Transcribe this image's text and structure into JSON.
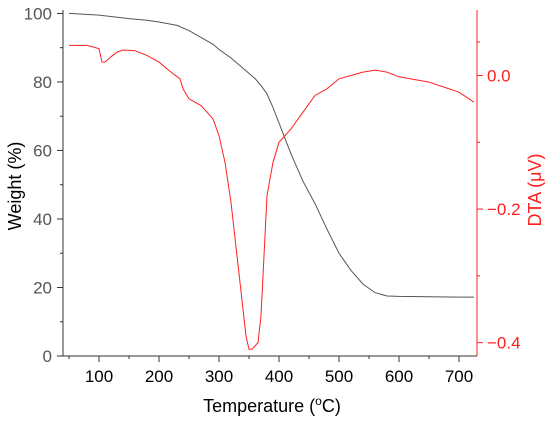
{
  "chart_data": {
    "type": "line",
    "xlabel": "Temperature (°C)",
    "xlabel_parts": {
      "prefix": "Temperature (",
      "superscript": "o",
      "suffix": "C)"
    },
    "ylabel_left": "Weight (%)",
    "ylabel_right": "DTA (μV)",
    "xlim": [
      40,
      730
    ],
    "ylim_left": [
      0,
      101
    ],
    "ylim_right": [
      -0.42,
      0.098
    ],
    "x_ticks": [
      100,
      200,
      300,
      400,
      500,
      600,
      700
    ],
    "x_tick_labels": [
      "100",
      "200",
      "300",
      "400",
      "500",
      "600",
      "700"
    ],
    "y_left_ticks": [
      0,
      20,
      40,
      60,
      80,
      100
    ],
    "y_left_tick_labels": [
      "0",
      "20",
      "40",
      "60",
      "80",
      "100"
    ],
    "y_right_ticks": [
      0.0,
      -0.2,
      -0.4
    ],
    "y_right_tick_labels": [
      "0.0",
      "−0.2",
      "−0.4"
    ],
    "grid": false,
    "colors": {
      "weight": "#555555",
      "dta": "#ff2020",
      "left_axis": "#333333",
      "right_axis": "#ff2020"
    },
    "series": [
      {
        "axis": "left",
        "x": [
          50,
          100,
          150,
          180,
          200,
          230,
          250,
          270,
          290,
          300,
          320,
          340,
          360,
          370,
          380,
          390,
          400,
          420,
          440,
          460,
          480,
          500,
          520,
          540,
          560,
          580,
          600,
          650,
          700,
          725
        ],
        "y": [
          100,
          99.5,
          98.5,
          98,
          97.5,
          96.5,
          95,
          93,
          91,
          89.5,
          87,
          84,
          81,
          79,
          76.5,
          72.5,
          68,
          59,
          51,
          44.5,
          37,
          30,
          25,
          21,
          18.5,
          17.5,
          17.4,
          17.3,
          17.2,
          17.2
        ]
      },
      {
        "axis": "right",
        "x": [
          50,
          80,
          100,
          105,
          110,
          120,
          130,
          140,
          160,
          180,
          200,
          220,
          235,
          240,
          250,
          260,
          270,
          280,
          290,
          300,
          310,
          320,
          330,
          340,
          345,
          350,
          355,
          360,
          365,
          370,
          375,
          380,
          390,
          400,
          420,
          440,
          460,
          480,
          500,
          520,
          540,
          560,
          580,
          600,
          650,
          700,
          725
        ],
        "y": [
          0.045,
          0.045,
          0.04,
          0.02,
          0.02,
          0.028,
          0.035,
          0.038,
          0.037,
          0.03,
          0.02,
          0.005,
          -0.005,
          -0.02,
          -0.035,
          -0.04,
          -0.045,
          -0.055,
          -0.065,
          -0.09,
          -0.13,
          -0.19,
          -0.27,
          -0.35,
          -0.39,
          -0.41,
          -0.41,
          -0.405,
          -0.4,
          -0.36,
          -0.27,
          -0.18,
          -0.13,
          -0.1,
          -0.08,
          -0.055,
          -0.03,
          -0.02,
          -0.005,
          0.0,
          0.005,
          0.008,
          0.005,
          -0.002,
          -0.01,
          -0.025,
          -0.04
        ]
      }
    ]
  }
}
